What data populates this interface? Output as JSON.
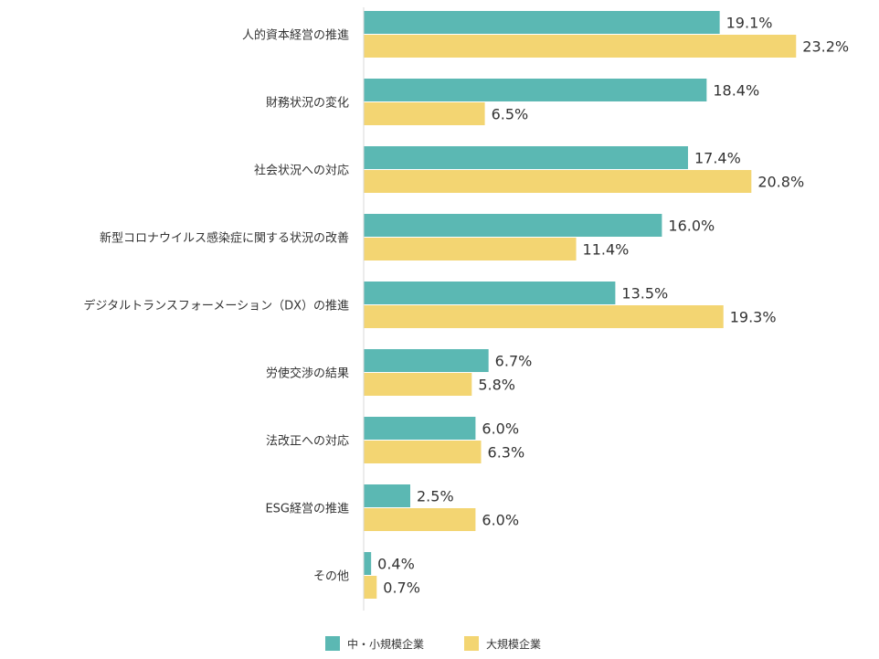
{
  "chart_data": {
    "type": "bar",
    "orientation": "horizontal",
    "categories": [
      "人的資本経営の推進",
      "財務状況の変化",
      "社会状況への対応",
      "新型コロナウイルス感染症に関する状況の改善",
      "デジタルトランスフォーメーション（DX）の推進",
      "労使交渉の結果",
      "法改正への対応",
      "ESG経営の推進",
      "その他"
    ],
    "series": [
      {
        "name": "中・小規模企業",
        "color": "#5bb8b3",
        "values": [
          19.1,
          18.4,
          17.4,
          16.0,
          13.5,
          6.7,
          6.0,
          2.5,
          0.4
        ],
        "labels": [
          "19.1%",
          "18.4%",
          "17.4%",
          "16.0%",
          "13.5%",
          "6.7%",
          "6.0%",
          "2.5%",
          "0.4%"
        ]
      },
      {
        "name": "大規模企業",
        "color": "#f3d572",
        "values": [
          23.2,
          6.5,
          20.8,
          11.4,
          19.3,
          5.8,
          6.3,
          6.0,
          0.7
        ],
        "labels": [
          "23.2%",
          "6.5%",
          "20.8%",
          "11.4%",
          "19.3%",
          "5.8%",
          "6.3%",
          "6.0%",
          "0.7%"
        ]
      }
    ],
    "xlim": [
      0,
      33
    ],
    "grid": false,
    "legend_position": "bottom",
    "title": "",
    "xlabel": "",
    "ylabel": ""
  }
}
